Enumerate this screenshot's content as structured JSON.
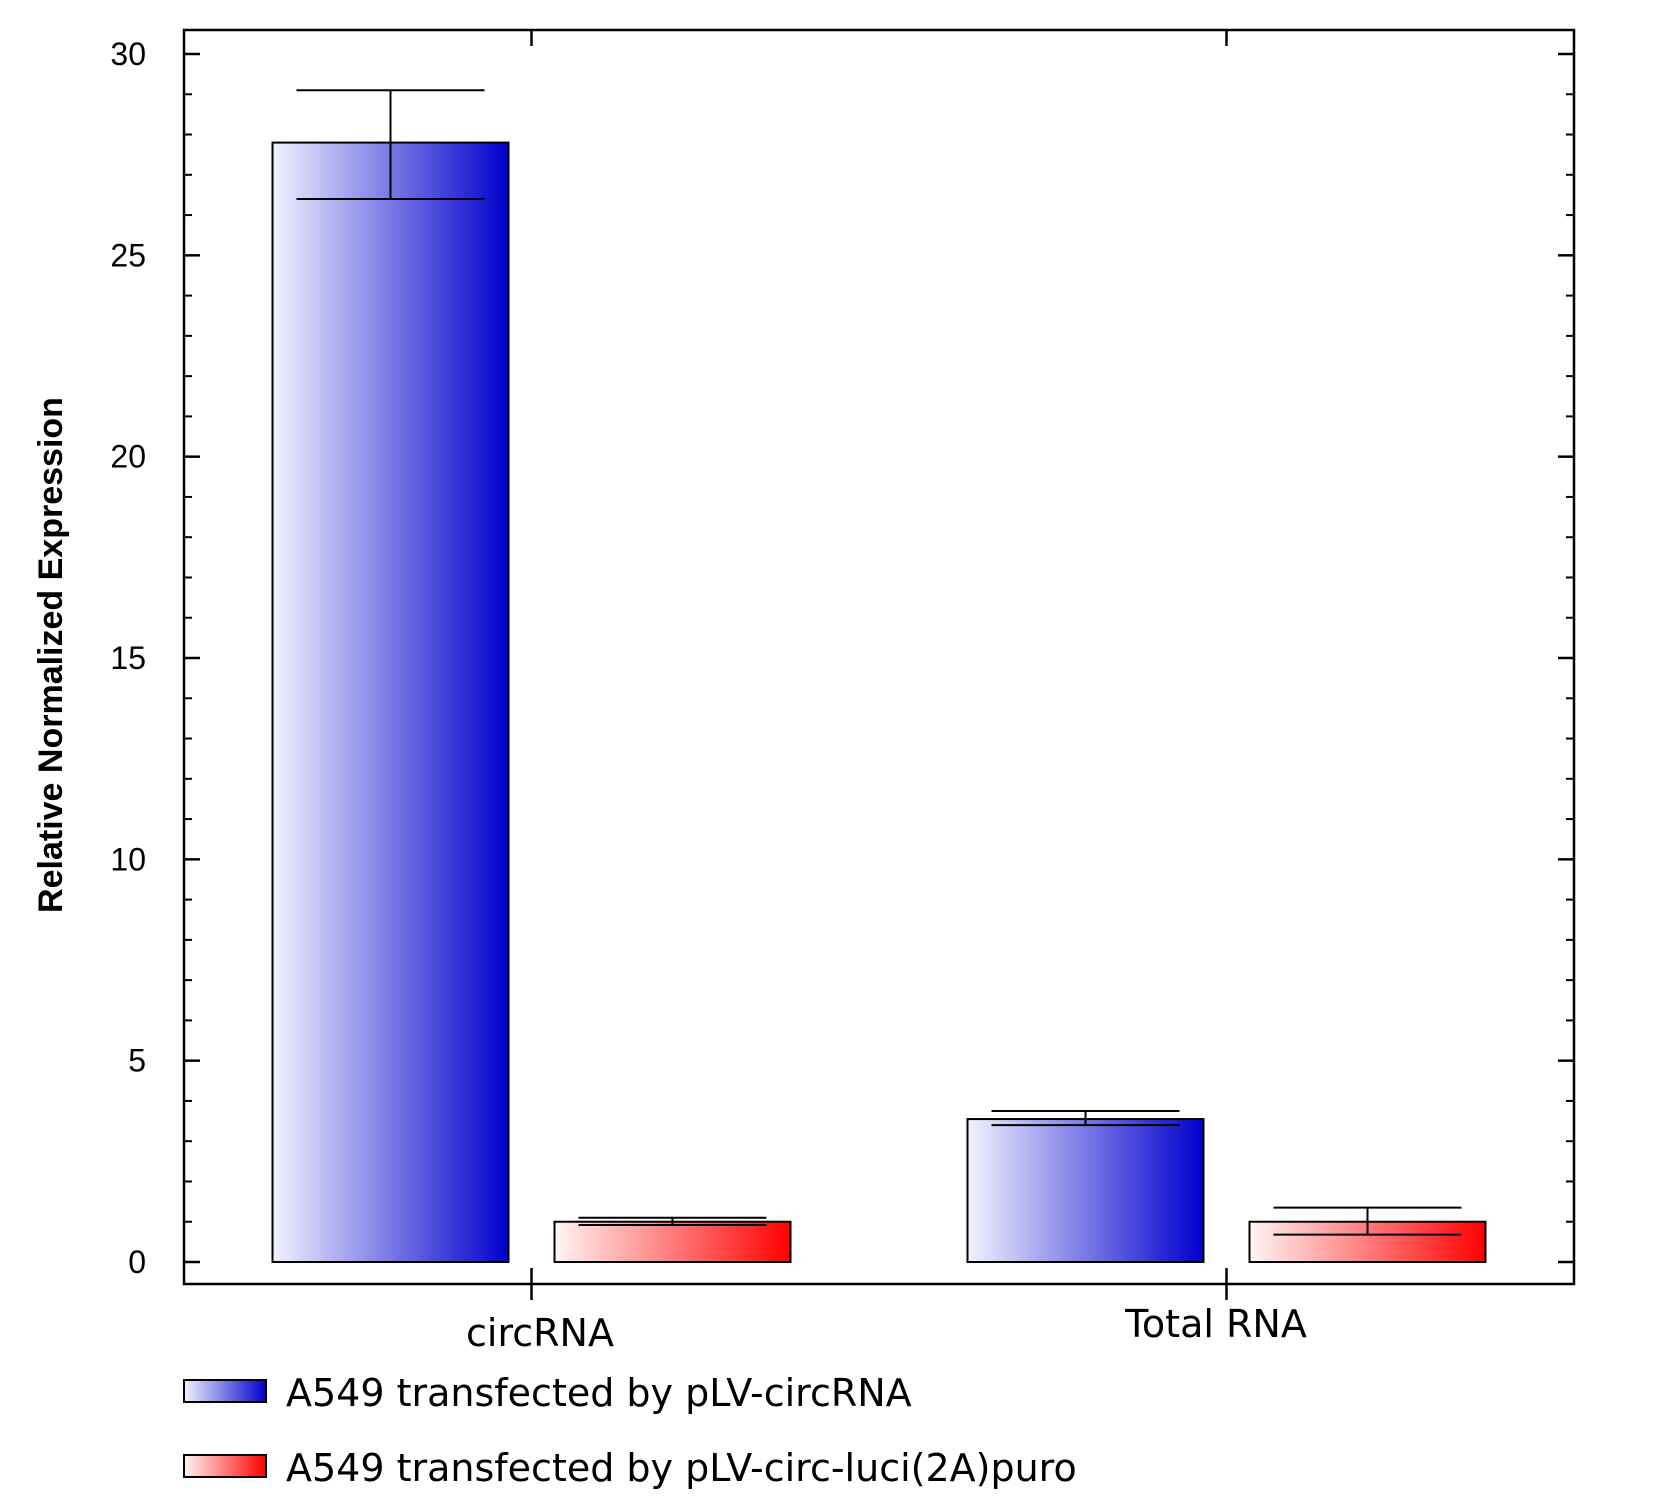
{
  "chart_data": {
    "type": "bar",
    "title": "",
    "xlabel": "",
    "ylabel": "Relative Normalized Expression",
    "categories": [
      "circRNA",
      "Total RNA"
    ],
    "series": [
      {
        "name": "A549 transfected by pLV-circRNA",
        "values": [
          27.8,
          3.55
        ],
        "error_high": [
          29.1,
          3.75
        ],
        "error_low": [
          26.4,
          3.4
        ],
        "color_start": "#f2f2ff",
        "color_end": "#0000cc"
      },
      {
        "name": "A549 transfected by pLV-circ-luci(2A)puro",
        "values": [
          1.0,
          1.0
        ],
        "error_high": [
          1.1,
          1.35
        ],
        "error_low": [
          0.92,
          0.68
        ],
        "color_start": "#fff5f5",
        "color_end": "#ff0000"
      }
    ],
    "ylim": [
      0,
      30
    ],
    "yticks": [
      0,
      5,
      10,
      15,
      20,
      25,
      30
    ],
    "grid": false,
    "legend_position": "bottom-left"
  }
}
